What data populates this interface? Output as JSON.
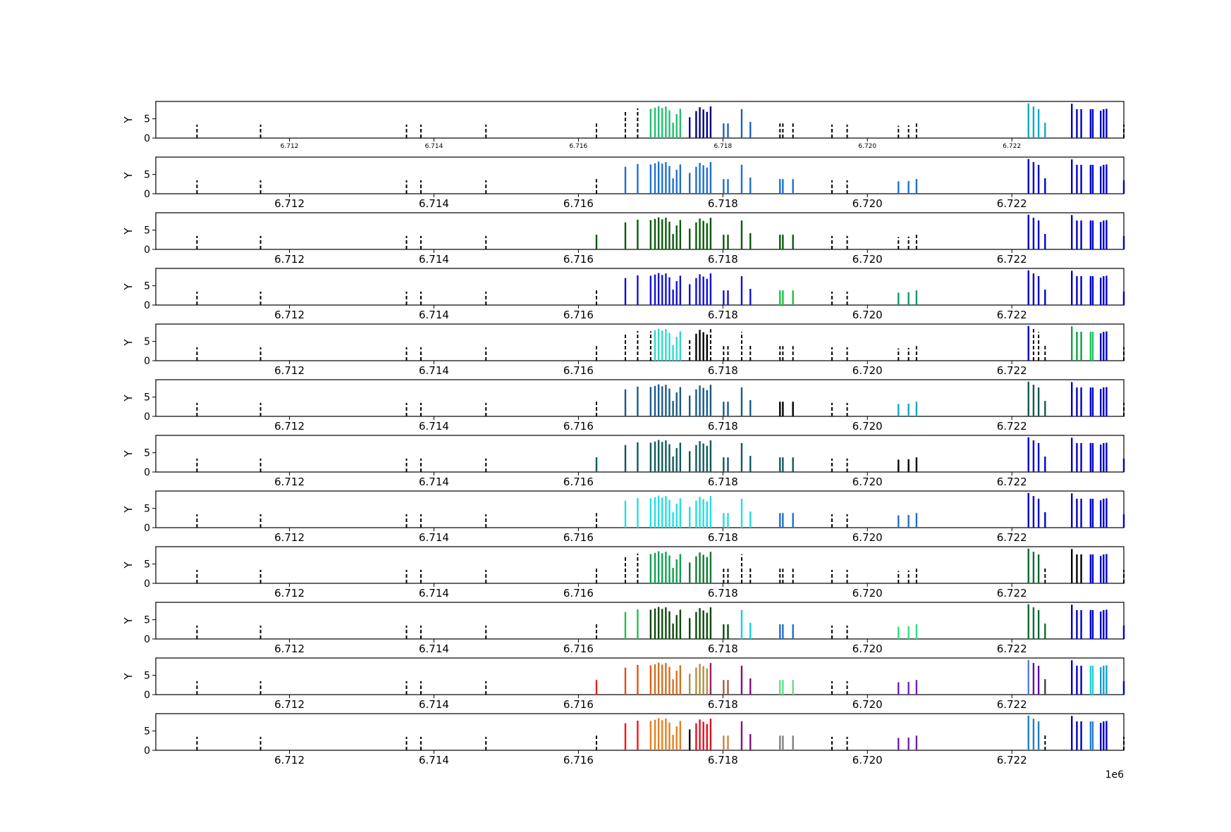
{
  "figure": {
    "offset_label": "1e6"
  },
  "chart_data": {
    "type": "bar",
    "description_free": true,
    "xlim": [
      6710150,
      6723550
    ],
    "ylim": [
      0,
      9.5
    ],
    "xticks": [
      6712000,
      6714000,
      6716000,
      6718000,
      6720000,
      6722000
    ],
    "xtick_labels": [
      "6.712",
      "6.714",
      "6.716",
      "6.718",
      "6.720",
      "6.722"
    ],
    "yticks": [
      0,
      5
    ],
    "ylabel": "Y",
    "bars": [
      {
        "x": 6710720,
        "y": 3.5
      },
      {
        "x": 6711600,
        "y": 3.5
      },
      {
        "x": 6713620,
        "y": 3.5
      },
      {
        "x": 6713820,
        "y": 3.5
      },
      {
        "x": 6714720,
        "y": 3.5
      },
      {
        "x": 6716250,
        "y": 3.8
      },
      {
        "x": 6716650,
        "y": 7.0
      },
      {
        "x": 6716820,
        "y": 7.7
      },
      {
        "x": 6717000,
        "y": 7.6
      },
      {
        "x": 6717060,
        "y": 7.9
      },
      {
        "x": 6717110,
        "y": 8.3
      },
      {
        "x": 6717160,
        "y": 7.8
      },
      {
        "x": 6717210,
        "y": 8.2
      },
      {
        "x": 6717260,
        "y": 7.2
      },
      {
        "x": 6717310,
        "y": 4.0
      },
      {
        "x": 6717360,
        "y": 6.2
      },
      {
        "x": 6717410,
        "y": 7.6
      },
      {
        "x": 6717540,
        "y": 5.4
      },
      {
        "x": 6717630,
        "y": 7.0
      },
      {
        "x": 6717680,
        "y": 8.0
      },
      {
        "x": 6717730,
        "y": 7.4
      },
      {
        "x": 6717780,
        "y": 6.8
      },
      {
        "x": 6717830,
        "y": 8.2
      },
      {
        "x": 6718010,
        "y": 3.8
      },
      {
        "x": 6718070,
        "y": 3.8
      },
      {
        "x": 6718260,
        "y": 7.5
      },
      {
        "x": 6718380,
        "y": 4.2
      },
      {
        "x": 6718790,
        "y": 3.8
      },
      {
        "x": 6718830,
        "y": 3.8
      },
      {
        "x": 6718970,
        "y": 3.8
      },
      {
        "x": 6719510,
        "y": 3.5
      },
      {
        "x": 6719720,
        "y": 3.5
      },
      {
        "x": 6720430,
        "y": 3.2
      },
      {
        "x": 6720570,
        "y": 3.3
      },
      {
        "x": 6720680,
        "y": 3.8
      },
      {
        "x": 6722230,
        "y": 9.0
      },
      {
        "x": 6722300,
        "y": 8.2
      },
      {
        "x": 6722370,
        "y": 7.5
      },
      {
        "x": 6722460,
        "y": 4.0
      },
      {
        "x": 6722830,
        "y": 8.9
      },
      {
        "x": 6722900,
        "y": 7.5
      },
      {
        "x": 6722960,
        "y": 7.5
      },
      {
        "x": 6723090,
        "y": 7.5
      },
      {
        "x": 6723120,
        "y": 7.5
      },
      {
        "x": 6723230,
        "y": 7.1
      },
      {
        "x": 6723270,
        "y": 7.5
      },
      {
        "x": 6723310,
        "y": 7.6
      },
      {
        "x": 6723550,
        "y": 3.5
      }
    ],
    "panels": [
      {
        "base": "#000000",
        "small_ticks": true,
        "ylabel_visible": true,
        "colors": {
          "6": "d",
          "7": "d",
          "8": "#1fc06f",
          "9": "#1fc06f",
          "10": "#1fc06f",
          "11": "#1fc06f",
          "12": "#1fc06f",
          "13": "#1fc06f",
          "14": "#1fc06f",
          "15": "#1fc06f",
          "16": "#1fc06f",
          "17": "#0000b0",
          "18": "#000080",
          "19": "#000080",
          "20": "#000080",
          "21": "#000080",
          "22": "#000080",
          "23": "#1f5fbf",
          "24": "#1f5fbf",
          "25": "#1f5fbf",
          "26": "#1f5fbf",
          "27": "d",
          "28": "d",
          "29": "d",
          "35": "#10a8c8",
          "36": "#10a8c8",
          "37": "#10a8c8",
          "38": "#10a8c8",
          "39": "#0000c8",
          "40": "#0000c8",
          "41": "#0000c8",
          "42": "#0000c8",
          "43": "#0000c8",
          "44": "#0000c8",
          "45": "#0000c8",
          "46": "#0000c8"
        }
      },
      {
        "base": "#000000",
        "small_ticks": false,
        "ylabel_visible": true,
        "colors": {
          "6": "#1f6fcf",
          "7": "#1f6fcf",
          "8": "#1f6fcf",
          "9": "#1f6fcf",
          "10": "#1f6fcf",
          "11": "#1f6fcf",
          "12": "#1f6fcf",
          "13": "#1f6fcf",
          "14": "#1f6fcf",
          "15": "#1f6fcf",
          "16": "#1f6fcf",
          "17": "#1f6fcf",
          "18": "#1f6fcf",
          "19": "#1f6fcf",
          "20": "#1f6fcf",
          "21": "#1f6fcf",
          "22": "#1f6fcf",
          "23": "#1f6fcf",
          "24": "#1f6fcf",
          "25": "#1f6fcf",
          "26": "#1f6fcf",
          "27": "#1f6fcf",
          "28": "#1f6fcf",
          "29": "#1f6fcf",
          "32": "#1f6fcf",
          "33": "#1f6fcf",
          "34": "#1f6fcf",
          "35": "#0000c8",
          "36": "#0000c8",
          "37": "#0000c8",
          "38": "#0000c8",
          "39": "#0000c8",
          "40": "#0000c8",
          "41": "#0000c8",
          "42": "#0000c8",
          "43": "#0000c8",
          "44": "#0000c8",
          "45": "#0000c8",
          "46": "#0000c8",
          "47": "#0000c8"
        }
      },
      {
        "base": "#000000",
        "small_ticks": false,
        "ylabel_visible": true,
        "colors": {
          "5": "#0a5a0a",
          "6": "#0a5a0a",
          "7": "#0a5a0a",
          "8": "#0a5a0a",
          "9": "#0a5a0a",
          "10": "#0a5a0a",
          "11": "#0a5a0a",
          "12": "#0a5a0a",
          "13": "#0a5a0a",
          "14": "#0a5a0a",
          "15": "#0a5a0a",
          "16": "#0a5a0a",
          "17": "#0a5a0a",
          "18": "#0a5a0a",
          "19": "#0a5a0a",
          "20": "#0a5a0a",
          "21": "#0a5a0a",
          "22": "#0a5a0a",
          "23": "#0a5a0a",
          "24": "#0a5a0a",
          "25": "#0a5a0a",
          "26": "#0a5a0a",
          "27": "#0a5a0a",
          "28": "#0a5a0a",
          "29": "#0a5a0a",
          "35": "#0000c8",
          "36": "#0000c8",
          "37": "#0000c8",
          "38": "#0000c8",
          "39": "#0000c8",
          "40": "#0000c8",
          "41": "#0000c8",
          "42": "#0000c8",
          "43": "#0000c8",
          "44": "#0000c8",
          "45": "#0000c8",
          "46": "#0000c8",
          "47": "#0000c8"
        }
      },
      {
        "base": "#000000",
        "small_ticks": false,
        "ylabel_visible": true,
        "colors": {
          "6": "#1010d8",
          "7": "#1010d8",
          "8": "#1010d8",
          "9": "#1010d8",
          "10": "#1010d8",
          "11": "#1010d8",
          "12": "#1010d8",
          "13": "#1010d8",
          "14": "#1010d8",
          "15": "#1010d8",
          "16": "#1010d8",
          "17": "#1010d8",
          "18": "#1010d8",
          "19": "#1010d8",
          "20": "#1010d8",
          "21": "#1010d8",
          "22": "#1010d8",
          "23": "#1010d8",
          "24": "#1010d8",
          "25": "#1010d8",
          "26": "#1010d8",
          "27": "#20c040",
          "28": "#20c040",
          "29": "#20c040",
          "32": "#109870",
          "33": "#109870",
          "34": "#109870",
          "35": "#0000c8",
          "36": "#0000c8",
          "37": "#0000c8",
          "38": "#0000c8",
          "39": "#0000c8",
          "40": "#0000c8",
          "41": "#0000c8",
          "42": "#0000c8",
          "43": "#0000c8",
          "44": "#0000c8",
          "45": "#0000c8",
          "46": "#0000c8",
          "47": "#0000c8"
        }
      },
      {
        "base": "#000000",
        "small_ticks": false,
        "ylabel_visible": true,
        "colors": {
          "6": "d",
          "7": "d",
          "8": "d",
          "9": "#30d8c8",
          "10": "#30d8c8",
          "11": "#30d8c8",
          "12": "#30d8c8",
          "13": "#30d8c8",
          "14": "#30d8c8",
          "15": "#30d8c8",
          "16": "#30d8c8",
          "17": "d",
          "18": "#000000",
          "19": "#000000",
          "20": "#000000",
          "21": "#000000",
          "22": "d",
          "23": "d",
          "24": "d",
          "25": "d",
          "26": "d",
          "27": "d",
          "28": "d",
          "29": "d",
          "32": "d",
          "33": "d",
          "34": "d",
          "35": "#0000c8",
          "36": "d",
          "37": "d",
          "38": "d",
          "39": "#10a040",
          "40": "#10a040",
          "41": "#10a040",
          "42": "#20c060",
          "43": "#20c060",
          "44": "#0000c8",
          "45": "#0000c8",
          "46": "#0000c8",
          "47": "d"
        }
      },
      {
        "base": "#000000",
        "small_ticks": false,
        "ylabel_visible": true,
        "colors": {
          "6": "#185a8a",
          "7": "#185a8a",
          "8": "#185a8a",
          "9": "#185a8a",
          "10": "#185a8a",
          "11": "#185a8a",
          "12": "#185a8a",
          "13": "#185a8a",
          "14": "#185a8a",
          "15": "#185a8a",
          "16": "#185a8a",
          "17": "#185a8a",
          "18": "#185a8a",
          "19": "#185a8a",
          "20": "#185a8a",
          "21": "#185a8a",
          "22": "#185a8a",
          "23": "#185a8a",
          "24": "#185a8a",
          "25": "#185a8a",
          "26": "#185a8a",
          "27": "#000000",
          "28": "#000000",
          "29": "#000000",
          "32": "#10a8c8",
          "33": "#10a8c8",
          "34": "#10a8c8",
          "35": "#105a50",
          "36": "#105a50",
          "37": "#105a50",
          "38": "#105a50",
          "39": "#0000c8",
          "40": "#0000c8",
          "41": "#0000c8",
          "42": "#0000c8",
          "43": "#0000c8",
          "44": "#0000c8",
          "45": "#0000c8",
          "46": "#0000c8",
          "47": "d"
        }
      },
      {
        "base": "#000000",
        "small_ticks": false,
        "ylabel_visible": true,
        "colors": {
          "5": "#105a5a",
          "6": "#105a5a",
          "7": "#105a5a",
          "8": "#105a5a",
          "9": "#105a5a",
          "10": "#105a5a",
          "11": "#105a5a",
          "12": "#105a5a",
          "13": "#105a5a",
          "14": "#105a5a",
          "15": "#105a5a",
          "16": "#105a5a",
          "17": "#105a5a",
          "18": "#105a5a",
          "19": "#105a5a",
          "20": "#105a5a",
          "21": "#105a5a",
          "22": "#105a5a",
          "23": "#105a5a",
          "24": "#105a5a",
          "25": "#105a5a",
          "26": "#105a5a",
          "27": "#105a5a",
          "28": "#105a5a",
          "29": "#105a5a",
          "32": "#000000",
          "33": "#000000",
          "34": "#000000",
          "35": "#0000c8",
          "36": "#0000c8",
          "37": "#0000c8",
          "38": "#0000c8",
          "39": "#0000c8",
          "40": "#0000c8",
          "41": "#0000c8",
          "42": "#0000c8",
          "43": "#0000c8",
          "44": "#0000c8",
          "45": "#0000c8",
          "46": "#0000c8",
          "47": "#0000c8"
        }
      },
      {
        "base": "#000000",
        "small_ticks": false,
        "ylabel_visible": true,
        "colors": {
          "6": "#20e0e0",
          "7": "#20e0e0",
          "8": "#20e0e0",
          "9": "#20e0e0",
          "10": "#20e0e0",
          "11": "#20e0e0",
          "12": "#20e0e0",
          "13": "#20e0e0",
          "14": "#20e0e0",
          "15": "#20e0e0",
          "16": "#20e0e0",
          "17": "#20e0e0",
          "18": "#20e0e0",
          "19": "#20e0e0",
          "20": "#20e0e0",
          "21": "#20e0e0",
          "22": "#20e0e0",
          "23": "#20e0e0",
          "24": "#20e0e0",
          "25": "#20e0e0",
          "26": "#20e0e0",
          "27": "#1f6fcf",
          "28": "#1f6fcf",
          "29": "#1f6fcf",
          "32": "#1f6fcf",
          "33": "#1f6fcf",
          "34": "#1f6fcf",
          "35": "#0000c8",
          "36": "#0000c8",
          "37": "#0000c8",
          "38": "#0000c8",
          "39": "#0000c8",
          "40": "#0000c8",
          "41": "#0000c8",
          "42": "#0000c8",
          "43": "#0000c8",
          "44": "#0000c8",
          "45": "#0000c8",
          "46": "#0000c8",
          "47": "#0000c8"
        }
      },
      {
        "base": "#000000",
        "small_ticks": false,
        "ylabel_visible": true,
        "colors": {
          "6": "d",
          "7": "d",
          "8": "#10a050",
          "9": "#10a050",
          "10": "#10a050",
          "11": "#10a050",
          "12": "#10a050",
          "13": "#10a050",
          "14": "#10a050",
          "15": "#10a050",
          "16": "#10a050",
          "17": "#107a30",
          "18": "#107a30",
          "19": "#107a30",
          "20": "#107a30",
          "21": "#107a30",
          "22": "#107a30",
          "23": "d",
          "24": "d",
          "25": "d",
          "26": "d",
          "27": "d",
          "28": "d",
          "29": "d",
          "32": "d",
          "33": "d",
          "34": "d",
          "35": "#106a30",
          "36": "#106a30",
          "37": "#106a30",
          "38": "d",
          "39": "#000000",
          "40": "#000000",
          "41": "#000000",
          "42": "#0000c8",
          "43": "#0000c8",
          "44": "#0000c8",
          "45": "#0000c8",
          "46": "#0000c8",
          "47": "d"
        }
      },
      {
        "base": "#000000",
        "small_ticks": false,
        "ylabel_visible": true,
        "colors": {
          "6": "#20c050",
          "7": "#20c050",
          "8": "#0a4a0a",
          "9": "#0a4a0a",
          "10": "#0a4a0a",
          "11": "#0a4a0a",
          "12": "#0a4a0a",
          "13": "#0a4a0a",
          "14": "#0a4a0a",
          "15": "#0a4a0a",
          "16": "#0a4a0a",
          "17": "#0a4a0a",
          "18": "#0a4a0a",
          "19": "#0a4a0a",
          "20": "#0a4a0a",
          "21": "#0a4a0a",
          "22": "#0a4a0a",
          "23": "#0a4a0a",
          "24": "#0a4a0a",
          "25": "#10d0e0",
          "26": "#10d0e0",
          "27": "#1f6fcf",
          "28": "#1f6fcf",
          "29": "#1f6fcf",
          "32": "#30e080",
          "33": "#30e080",
          "34": "#30e080",
          "35": "#106a30",
          "36": "#106a30",
          "37": "#106a30",
          "38": "#106a30",
          "39": "#0000c8",
          "40": "#0000c8",
          "41": "#0000c8",
          "42": "#0000c8",
          "43": "#0000c8",
          "44": "#0000c8",
          "45": "#0000c8",
          "46": "#0000c8",
          "47": "#0000c8"
        }
      },
      {
        "base": "#000000",
        "small_ticks": false,
        "ylabel_visible": true,
        "colors": {
          "5": "#e02020",
          "6": "#e05010",
          "7": "#e05010",
          "8": "#e06010",
          "9": "#d07020",
          "10": "#d07020",
          "11": "#d07020",
          "12": "#d07020",
          "13": "#d07020",
          "14": "#d07020",
          "15": "#d07020",
          "16": "#d07020",
          "17": "#b09040",
          "18": "#b09040",
          "19": "#b09040",
          "20": "#b09040",
          "21": "#b09040",
          "22": "#a02050",
          "23": "#a06040",
          "24": "#a06040",
          "25": "#801080",
          "26": "#801080",
          "27": "#60e080",
          "28": "#60e080",
          "29": "#60e080",
          "32": "#7020b0",
          "33": "#7020b0",
          "34": "#7020b0",
          "35": "#5080d0",
          "36": "#6010a0",
          "37": "#6010a0",
          "38": "#404040",
          "39": "#0000c8",
          "40": "#0000c8",
          "41": "#0000c8",
          "42": "#20d0d0",
          "43": "#20d0d0",
          "44": "#10a0d0",
          "45": "#10a0d0",
          "46": "#10a0d0",
          "47": "#0000c8"
        }
      },
      {
        "base": "#000000",
        "small_ticks": false,
        "ylabel_visible": false,
        "colors": {
          "6": "#ff1010",
          "7": "#ff1010",
          "8": "#e08020",
          "9": "#e08020",
          "10": "#e08020",
          "11": "#e08020",
          "12": "#e08020",
          "13": "#e08020",
          "14": "#e08020",
          "15": "#e08020",
          "16": "#e08020",
          "17": "#000000",
          "18": "#e01020",
          "19": "#e01020",
          "20": "#e01020",
          "21": "#e01020",
          "22": "#e01020",
          "23": "#d08040",
          "24": "#d08040",
          "25": "#801080",
          "26": "#801080",
          "27": "#808080",
          "28": "#808080",
          "29": "#808080",
          "32": "#7020b0",
          "33": "#7020b0",
          "34": "#7020b0",
          "35": "#2080c0",
          "36": "#2080c0",
          "37": "#2080c0",
          "38": "d",
          "39": "#0000c8",
          "40": "#0000c8",
          "41": "#0000c8",
          "42": "#2080d0",
          "43": "#2080d0",
          "44": "#0000c8",
          "45": "#0000c8",
          "46": "#0000c8",
          "47": "d"
        }
      }
    ]
  }
}
